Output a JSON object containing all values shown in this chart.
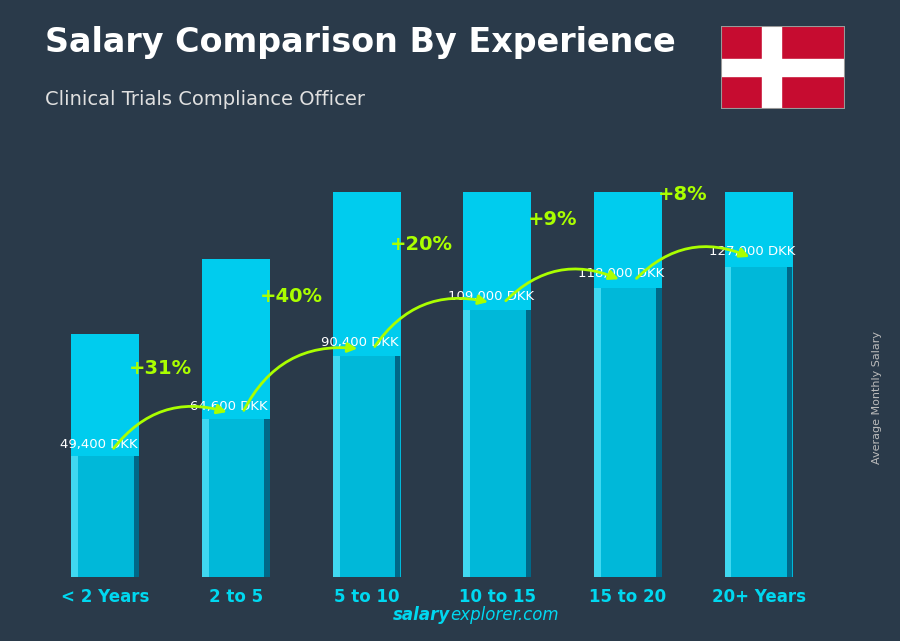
{
  "title": "Salary Comparison By Experience",
  "subtitle": "Clinical Trials Compliance Officer",
  "categories": [
    "< 2 Years",
    "2 to 5",
    "5 to 10",
    "10 to 15",
    "15 to 20",
    "20+ Years"
  ],
  "values": [
    49400,
    64600,
    90400,
    109000,
    118000,
    127000
  ],
  "labels": [
    "49,400 DKK",
    "64,600 DKK",
    "90,400 DKK",
    "109,000 DKK",
    "118,000 DKK",
    "127,000 DKK"
  ],
  "pct_changes": [
    "+31%",
    "+40%",
    "+20%",
    "+9%",
    "+8%"
  ],
  "bar_color_face": "#00b8d9",
  "bar_color_light": "#40d8f0",
  "bar_color_dark": "#006888",
  "bar_color_top": "#00ccee",
  "bg_color": "#2a3a4a",
  "title_color": "#ffffff",
  "subtitle_color": "#e0e0e0",
  "label_color": "#ffffff",
  "pct_color": "#aaff00",
  "arrow_color": "#aaff00",
  "xtick_color": "#00d8f0",
  "ylabel_text": "Average Monthly Salary",
  "footer_salary": "salary",
  "footer_explorer": "explorer",
  "footer_com": ".com",
  "ylim": [
    0,
    155000
  ],
  "bar_width": 0.52
}
